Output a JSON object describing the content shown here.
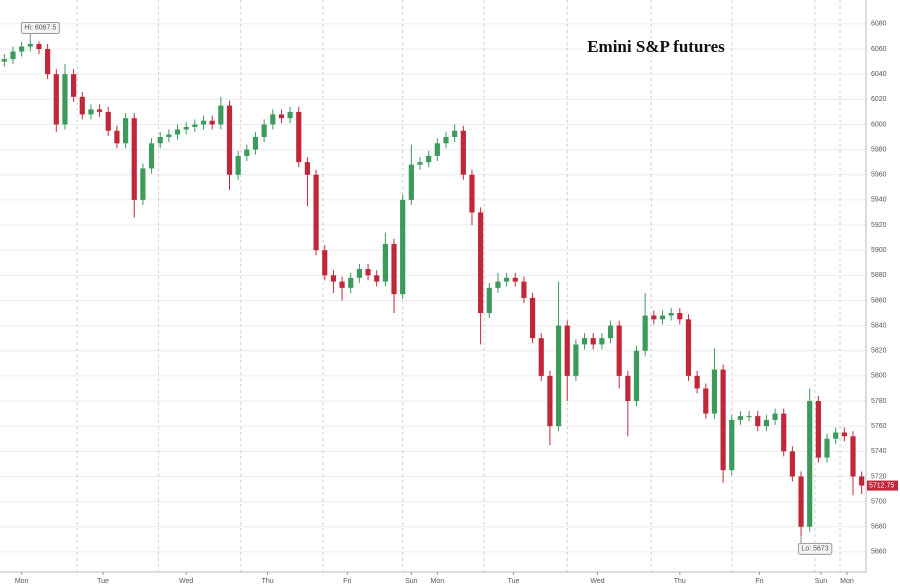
{
  "chart_data": {
    "type": "candlestick",
    "title": "Emini S&P futures",
    "open": [
      6050,
      6052,
      6058,
      6062,
      6064,
      6060,
      6040,
      6000,
      6040,
      6022,
      6008,
      6012,
      6010,
      5995,
      5985,
      6005,
      5940,
      5965,
      5985,
      5990,
      5992,
      5996,
      5998,
      6000,
      6003,
      6000,
      6015,
      5960,
      5975,
      5980,
      5990,
      6000,
      6008,
      6005,
      6010,
      5970,
      5960,
      5900,
      5880,
      5875,
      5870,
      5878,
      5885,
      5880,
      5875,
      5905,
      5865,
      5940,
      5968,
      5970,
      5975,
      5985,
      5990,
      5995,
      5960,
      5930,
      5850,
      5870,
      5875,
      5878,
      5875,
      5862,
      5830,
      5800,
      5760,
      5840,
      5800,
      5825,
      5830,
      5825,
      5830,
      5840,
      5800,
      5780,
      5820,
      5848,
      5845,
      5848,
      5850,
      5845,
      5800,
      5790,
      5770,
      5805,
      5725,
      5765,
      5768,
      5768,
      5760,
      5765,
      5770,
      5740,
      5720,
      5680,
      5780,
      5735,
      5750,
      5755,
      5752,
      5720
    ],
    "high": [
      6056,
      6062,
      6066,
      6067.5,
      6066,
      6064,
      6044,
      6048,
      6044,
      6026,
      6016,
      6016,
      6014,
      5999,
      6009,
      6009,
      5969,
      5989,
      5994,
      5996,
      6000,
      6002,
      6004,
      6007,
      6007,
      6022,
      6019,
      5979,
      5984,
      5994,
      6004,
      6012,
      6012,
      6014,
      6014,
      5974,
      5964,
      5904,
      5884,
      5879,
      5882,
      5889,
      5889,
      5884,
      5914,
      5909,
      5944,
      5984,
      5974,
      5979,
      5989,
      5994,
      6000,
      5999,
      5964,
      5934,
      5874,
      5882,
      5882,
      5882,
      5879,
      5866,
      5834,
      5804,
      5875,
      5844,
      5829,
      5834,
      5834,
      5834,
      5844,
      5844,
      5804,
      5824,
      5866,
      5852,
      5852,
      5854,
      5854,
      5849,
      5804,
      5794,
      5822,
      5809,
      5769,
      5772,
      5772,
      5772,
      5769,
      5774,
      5774,
      5744,
      5724,
      5790,
      5784,
      5754,
      5759,
      5759,
      5756,
      5724
    ],
    "low": [
      6046,
      6048,
      6054,
      6058,
      6056,
      6036,
      5994,
      5996,
      6018,
      6004,
      6004,
      6006,
      5991,
      5981,
      5981,
      5926,
      5936,
      5961,
      5981,
      5986,
      5988,
      5992,
      5994,
      5996,
      5996,
      5996,
      5948,
      5956,
      5971,
      5976,
      5986,
      5996,
      6001,
      6001,
      5966,
      5935,
      5896,
      5876,
      5866,
      5860,
      5866,
      5874,
      5876,
      5871,
      5871,
      5850,
      5861,
      5936,
      5964,
      5966,
      5971,
      5981,
      5986,
      5956,
      5920,
      5825,
      5846,
      5866,
      5871,
      5871,
      5858,
      5826,
      5796,
      5745,
      5756,
      5780,
      5796,
      5821,
      5821,
      5821,
      5826,
      5790,
      5752,
      5776,
      5816,
      5841,
      5841,
      5844,
      5841,
      5796,
      5786,
      5766,
      5766,
      5715,
      5721,
      5761,
      5764,
      5756,
      5756,
      5761,
      5736,
      5716,
      5673,
      5676,
      5731,
      5731,
      5746,
      5748,
      5705,
      5706
    ],
    "close": [
      6052,
      6058,
      6062,
      6064,
      6060,
      6040,
      6000,
      6040,
      6022,
      6008,
      6012,
      6010,
      5995,
      5985,
      6005,
      5940,
      5965,
      5985,
      5990,
      5992,
      5996,
      5998,
      6000,
      6003,
      6000,
      6015,
      5960,
      5975,
      5980,
      5990,
      6000,
      6008,
      6005,
      6010,
      5970,
      5960,
      5900,
      5880,
      5875,
      5870,
      5878,
      5885,
      5880,
      5875,
      5905,
      5865,
      5940,
      5968,
      5970,
      5975,
      5985,
      5990,
      5995,
      5960,
      5930,
      5850,
      5870,
      5875,
      5878,
      5875,
      5862,
      5830,
      5800,
      5760,
      5840,
      5800,
      5825,
      5830,
      5825,
      5830,
      5840,
      5800,
      5780,
      5820,
      5848,
      5845,
      5848,
      5850,
      5845,
      5800,
      5790,
      5770,
      5805,
      5725,
      5765,
      5768,
      5768,
      5760,
      5765,
      5770,
      5740,
      5720,
      5680,
      5780,
      5735,
      5750,
      5755,
      5752,
      5720,
      5712.75
    ],
    "up_color": "#3c9a5c",
    "down_color": "#c0283a",
    "ylim": [
      5644,
      6099
    ],
    "yticks": [
      5660,
      5680,
      5700,
      5720,
      5740,
      5760,
      5780,
      5800,
      5820,
      5840,
      5860,
      5880,
      5900,
      5920,
      5940,
      5960,
      5980,
      6000,
      6020,
      6040,
      6060,
      6080
    ],
    "xlim": [
      -0.5,
      99.5
    ],
    "xticks": [
      {
        "value": 2,
        "label": "Mon"
      },
      {
        "value": 11.4,
        "label": "Tue"
      },
      {
        "value": 21,
        "label": "Wed"
      },
      {
        "value": 30.4,
        "label": "Thu"
      },
      {
        "value": 39.6,
        "label": "Fri"
      },
      {
        "value": 47,
        "label": "Sun"
      },
      {
        "value": 50,
        "label": "Mon"
      },
      {
        "value": 58.8,
        "label": "Tue"
      },
      {
        "value": 68.5,
        "label": "Wed"
      },
      {
        "value": 78,
        "label": "Thu"
      },
      {
        "value": 87.2,
        "label": "Fri"
      },
      {
        "value": 94.3,
        "label": "Sun"
      },
      {
        "value": 97.3,
        "label": "Mon"
      }
    ],
    "day_breaks": [
      8.4,
      17.8,
      27.3,
      36.8,
      46,
      55.4,
      65,
      74.7,
      84,
      93.6,
      96.5
    ],
    "grid": true,
    "annotations": [
      {
        "text": "Hi: 6067.5",
        "x": 3,
        "y": 6067.5
      },
      {
        "text": "Lo: 5673",
        "x": 92,
        "y": 5673
      }
    ],
    "last_label": "5712.75"
  }
}
